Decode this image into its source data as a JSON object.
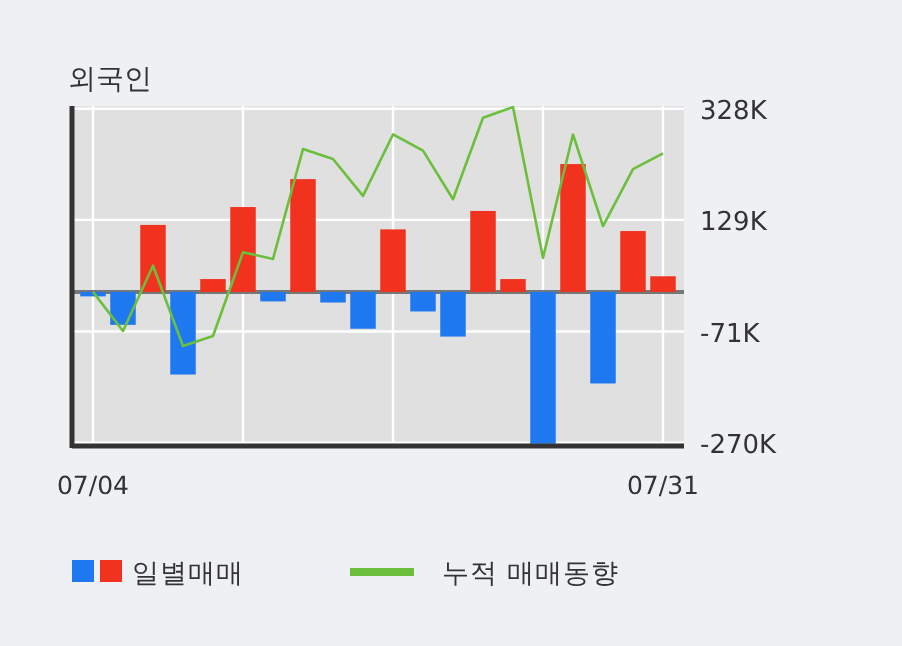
{
  "chart_data": {
    "type": "bar",
    "title": "외국인",
    "categories": [
      "07/04",
      null,
      null,
      null,
      null,
      null,
      null,
      null,
      null,
      null,
      null,
      null,
      null,
      null,
      null,
      null,
      null,
      null,
      null,
      "07/31"
    ],
    "series": [
      {
        "name": "일별매매",
        "values": [
          -8,
          -59,
          120,
          -148,
          23,
          152,
          -17,
          202,
          -19,
          -66,
          112,
          -35,
          -80,
          145,
          23,
          -272,
          229,
          -164,
          109,
          28
        ],
        "colors": [
          "#1e78f0",
          "#1e78f0",
          "#f0321e",
          "#1e78f0",
          "#f0321e",
          "#f0321e",
          "#1e78f0",
          "#f0321e",
          "#1e78f0",
          "#1e78f0",
          "#f0321e",
          "#1e78f0",
          "#1e78f0",
          "#f0321e",
          "#f0321e",
          "#1e78f0",
          "#f0321e",
          "#1e78f0",
          "#f0321e",
          "#f0321e"
        ]
      },
      {
        "name": "누적 매매동향",
        "type": "line",
        "color": "#6cbf3c",
        "values": [
          0,
          -70,
          47,
          -97,
          -79,
          71,
          59,
          256,
          238,
          172,
          282,
          253,
          166,
          312,
          331,
          61,
          282,
          118,
          220,
          248
        ]
      }
    ],
    "ylim": [
      -276,
      333
    ],
    "yticks": [
      {
        "value": 328,
        "label": "328K"
      },
      {
        "value": 129,
        "label": "129K"
      },
      {
        "value": -71,
        "label": "-71K"
      },
      {
        "value": -270,
        "label": "-270K"
      }
    ],
    "grid": true,
    "legend": "bottom"
  }
}
